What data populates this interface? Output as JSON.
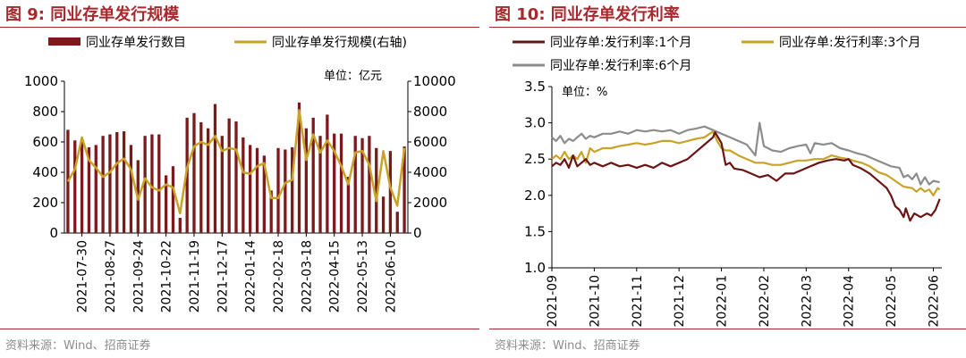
{
  "colors": {
    "accent": "#a8282d",
    "bar": "#7a1a1c",
    "gold": "#c9a227",
    "gray": "#8c8c8c",
    "dark_red": "#6b1414"
  },
  "left": {
    "title": "图 9:  同业存单发行规模",
    "source": "资料来源：Wind、招商证券",
    "chart_data": {
      "type": "bar+line",
      "title": "同业存单发行规模",
      "unit": "单位：亿元",
      "y_left": {
        "ylim": [
          0,
          1000
        ],
        "ticks": [
          "0",
          "200",
          "400",
          "600",
          "800",
          "1000"
        ]
      },
      "y_right": {
        "ylim": [
          0,
          10000
        ],
        "ticks": [
          "0",
          "2000",
          "4000",
          "6000",
          "8000",
          "10000"
        ]
      },
      "x_tick_labels": [
        "2021-07-30",
        "2021-08-27",
        "2021-09-24",
        "2021-10-22",
        "2021-11-19",
        "2021-12-17",
        "2022-01-14",
        "2022-02-18",
        "2022-03-18",
        "2022-04-15",
        "2022-05-13",
        "2022-06-10"
      ],
      "x_tick_positions": [
        2,
        6,
        10,
        14,
        18,
        22,
        26,
        30,
        34,
        38,
        42,
        46
      ],
      "series": [
        {
          "name": "同业存单发行数目",
          "kind": "bar",
          "values": [
            680,
            610,
            620,
            565,
            580,
            640,
            650,
            665,
            670,
            580,
            480,
            640,
            650,
            650,
            380,
            440,
            100,
            760,
            790,
            730,
            690,
            850,
            640,
            755,
            735,
            630,
            580,
            560,
            510,
            280,
            560,
            550,
            565,
            860,
            690,
            760,
            640,
            780,
            655,
            655,
            370,
            640,
            625,
            640,
            560,
            240,
            540,
            140,
            570
          ]
        },
        {
          "name": "同业存单发行规模(右轴)",
          "kind": "line",
          "axis": "right",
          "values": [
            3400,
            4200,
            6300,
            4800,
            4300,
            3700,
            4000,
            4600,
            4900,
            4200,
            2200,
            3600,
            3000,
            2800,
            3200,
            3000,
            1300,
            4300,
            5700,
            6000,
            5800,
            6400,
            5400,
            5600,
            5500,
            4000,
            3900,
            4400,
            4600,
            2300,
            2300,
            3300,
            3500,
            8100,
            4800,
            6500,
            5300,
            6100,
            5400,
            4400,
            3200,
            5300,
            5400,
            4500,
            2100,
            5400,
            3000,
            1800,
            5600
          ]
        }
      ]
    }
  },
  "right": {
    "title": "图 10:  同业存单发行利率",
    "source": "资料来源：Wind、招商证券",
    "chart_data": {
      "type": "line",
      "title": "同业存单发行利率",
      "unit": "单位：%",
      "ylim": [
        1.0,
        3.5
      ],
      "y_ticks": [
        "1.0",
        "1.5",
        "2.0",
        "2.5",
        "3.0",
        "3.5"
      ],
      "x_tick_labels": [
        "2021-09",
        "2021-10",
        "2021-11",
        "2021-12",
        "2022-01",
        "2022-02",
        "2022-03",
        "2022-04",
        "2022-05",
        "2022-06"
      ],
      "x_range": [
        0,
        9.2
      ],
      "series": [
        {
          "name": "同业存单:发行利率:1个月",
          "color": "#6b1414",
          "points": [
            [
              0,
              2.4
            ],
            [
              0.1,
              2.45
            ],
            [
              0.2,
              2.42
            ],
            [
              0.3,
              2.5
            ],
            [
              0.4,
              2.38
            ],
            [
              0.5,
              2.55
            ],
            [
              0.6,
              2.4
            ],
            [
              0.7,
              2.45
            ],
            [
              0.8,
              2.5
            ],
            [
              0.9,
              2.42
            ],
            [
              1.0,
              2.45
            ],
            [
              1.2,
              2.4
            ],
            [
              1.4,
              2.45
            ],
            [
              1.6,
              2.4
            ],
            [
              1.8,
              2.42
            ],
            [
              2.0,
              2.38
            ],
            [
              2.2,
              2.42
            ],
            [
              2.4,
              2.38
            ],
            [
              2.6,
              2.45
            ],
            [
              2.8,
              2.4
            ],
            [
              3.0,
              2.45
            ],
            [
              3.2,
              2.5
            ],
            [
              3.4,
              2.6
            ],
            [
              3.6,
              2.7
            ],
            [
              3.8,
              2.8
            ],
            [
              3.85,
              2.87
            ],
            [
              4.0,
              2.72
            ],
            [
              4.1,
              2.42
            ],
            [
              4.2,
              2.45
            ],
            [
              4.3,
              2.37
            ],
            [
              4.5,
              2.35
            ],
            [
              4.7,
              2.3
            ],
            [
              4.9,
              2.25
            ],
            [
              5.1,
              2.28
            ],
            [
              5.3,
              2.2
            ],
            [
              5.5,
              2.3
            ],
            [
              5.7,
              2.3
            ],
            [
              5.9,
              2.35
            ],
            [
              6.1,
              2.4
            ],
            [
              6.3,
              2.45
            ],
            [
              6.5,
              2.48
            ],
            [
              6.7,
              2.5
            ],
            [
              6.9,
              2.48
            ],
            [
              7.0,
              2.5
            ],
            [
              7.1,
              2.42
            ],
            [
              7.3,
              2.37
            ],
            [
              7.5,
              2.3
            ],
            [
              7.7,
              2.2
            ],
            [
              7.9,
              2.1
            ],
            [
              8.0,
              2.0
            ],
            [
              8.1,
              1.85
            ],
            [
              8.2,
              1.8
            ],
            [
              8.3,
              1.7
            ],
            [
              8.35,
              1.82
            ],
            [
              8.45,
              1.65
            ],
            [
              8.55,
              1.75
            ],
            [
              8.7,
              1.7
            ],
            [
              8.85,
              1.75
            ],
            [
              8.95,
              1.72
            ],
            [
              9.05,
              1.8
            ],
            [
              9.15,
              1.95
            ]
          ]
        },
        {
          "name": "同业存单:发行利率:3个月",
          "color": "#c9a227",
          "points": [
            [
              0,
              2.5
            ],
            [
              0.1,
              2.55
            ],
            [
              0.2,
              2.5
            ],
            [
              0.3,
              2.6
            ],
            [
              0.4,
              2.5
            ],
            [
              0.5,
              2.55
            ],
            [
              0.6,
              2.5
            ],
            [
              0.7,
              2.6
            ],
            [
              0.8,
              2.45
            ],
            [
              0.9,
              2.65
            ],
            [
              1.0,
              2.6
            ],
            [
              1.2,
              2.65
            ],
            [
              1.4,
              2.65
            ],
            [
              1.6,
              2.68
            ],
            [
              1.8,
              2.7
            ],
            [
              2.0,
              2.72
            ],
            [
              2.2,
              2.7
            ],
            [
              2.4,
              2.72
            ],
            [
              2.6,
              2.75
            ],
            [
              2.8,
              2.75
            ],
            [
              3.0,
              2.72
            ],
            [
              3.2,
              2.75
            ],
            [
              3.4,
              2.78
            ],
            [
              3.6,
              2.8
            ],
            [
              3.8,
              2.88
            ],
            [
              3.9,
              2.75
            ],
            [
              4.0,
              2.65
            ],
            [
              4.1,
              2.62
            ],
            [
              4.2,
              2.62
            ],
            [
              4.4,
              2.55
            ],
            [
              4.6,
              2.5
            ],
            [
              4.8,
              2.45
            ],
            [
              5.0,
              2.45
            ],
            [
              5.2,
              2.42
            ],
            [
              5.4,
              2.42
            ],
            [
              5.6,
              2.45
            ],
            [
              5.8,
              2.48
            ],
            [
              6.0,
              2.48
            ],
            [
              6.2,
              2.5
            ],
            [
              6.4,
              2.5
            ],
            [
              6.6,
              2.55
            ],
            [
              6.8,
              2.52
            ],
            [
              7.0,
              2.5
            ],
            [
              7.1,
              2.48
            ],
            [
              7.3,
              2.45
            ],
            [
              7.5,
              2.4
            ],
            [
              7.7,
              2.32
            ],
            [
              7.9,
              2.28
            ],
            [
              8.1,
              2.2
            ],
            [
              8.3,
              2.12
            ],
            [
              8.5,
              2.1
            ],
            [
              8.6,
              2.05
            ],
            [
              8.7,
              2.1
            ],
            [
              8.8,
              2.05
            ],
            [
              8.9,
              2.08
            ],
            [
              9.0,
              2.0
            ],
            [
              9.1,
              2.1
            ],
            [
              9.15,
              2.08
            ]
          ]
        },
        {
          "name": "同业存单:发行利率:6个月",
          "color": "#8c8c8c",
          "points": [
            [
              0,
              2.8
            ],
            [
              0.1,
              2.75
            ],
            [
              0.2,
              2.82
            ],
            [
              0.3,
              2.72
            ],
            [
              0.4,
              2.78
            ],
            [
              0.5,
              2.75
            ],
            [
              0.6,
              2.8
            ],
            [
              0.7,
              2.85
            ],
            [
              0.8,
              2.78
            ],
            [
              0.9,
              2.82
            ],
            [
              1.0,
              2.8
            ],
            [
              1.2,
              2.85
            ],
            [
              1.4,
              2.85
            ],
            [
              1.6,
              2.88
            ],
            [
              1.8,
              2.85
            ],
            [
              2.0,
              2.9
            ],
            [
              2.2,
              2.88
            ],
            [
              2.4,
              2.9
            ],
            [
              2.6,
              2.88
            ],
            [
              2.8,
              2.9
            ],
            [
              3.0,
              2.85
            ],
            [
              3.2,
              2.9
            ],
            [
              3.4,
              2.92
            ],
            [
              3.6,
              2.95
            ],
            [
              3.8,
              2.9
            ],
            [
              4.0,
              2.85
            ],
            [
              4.2,
              2.8
            ],
            [
              4.4,
              2.75
            ],
            [
              4.6,
              2.7
            ],
            [
              4.8,
              2.55
            ],
            [
              4.9,
              3.0
            ],
            [
              5.0,
              2.68
            ],
            [
              5.2,
              2.62
            ],
            [
              5.4,
              2.6
            ],
            [
              5.6,
              2.65
            ],
            [
              5.8,
              2.68
            ],
            [
              6.0,
              2.7
            ],
            [
              6.1,
              2.58
            ],
            [
              6.2,
              2.72
            ],
            [
              6.4,
              2.7
            ],
            [
              6.6,
              2.72
            ],
            [
              6.8,
              2.65
            ],
            [
              7.0,
              2.62
            ],
            [
              7.2,
              2.58
            ],
            [
              7.4,
              2.55
            ],
            [
              7.6,
              2.5
            ],
            [
              7.8,
              2.45
            ],
            [
              8.0,
              2.4
            ],
            [
              8.2,
              2.38
            ],
            [
              8.3,
              2.25
            ],
            [
              8.4,
              2.28
            ],
            [
              8.5,
              2.22
            ],
            [
              8.6,
              2.3
            ],
            [
              8.7,
              2.15
            ],
            [
              8.8,
              2.25
            ],
            [
              8.9,
              2.15
            ],
            [
              9.0,
              2.2
            ],
            [
              9.15,
              2.18
            ]
          ]
        }
      ]
    }
  }
}
